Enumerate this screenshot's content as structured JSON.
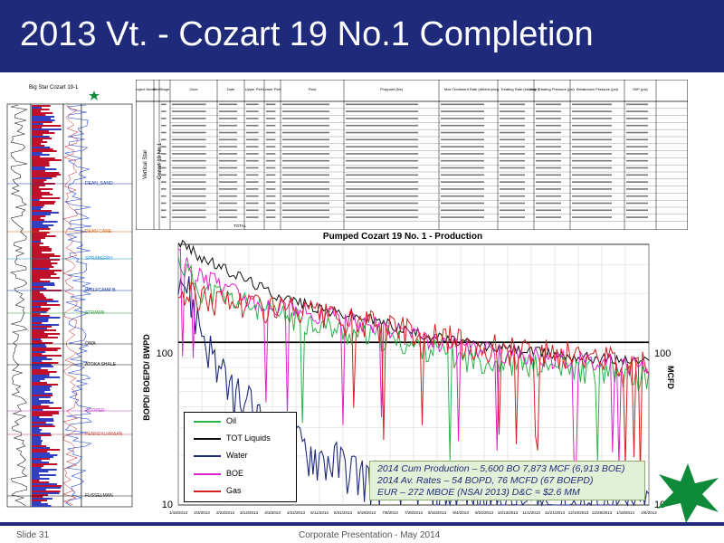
{
  "slide": {
    "title": "2013 Vt. - Cozart 19 No.1 Completion",
    "footer_left": "Slide 31",
    "footer_center": "Corporate Presentation - May 2014"
  },
  "colors": {
    "title_bar": "#1f2b7a",
    "oil": "#2ab34a",
    "tot_liquids": "#111111",
    "water": "#1f2b7a",
    "boe": "#e020c8",
    "gas": "#d42020",
    "star": "#0f8a3a"
  },
  "well_log": {
    "title": "Big Star Cozart 19-1",
    "labels": [
      {
        "text": "DEAN_SAND"
      },
      {
        "text": "DEAN CARE"
      },
      {
        "text": "SPRABERRY"
      },
      {
        "text": "WOLFCAMP B"
      },
      {
        "text": "STRAWN"
      },
      {
        "text": "OWA"
      },
      {
        "text": "ATOKA SHALE"
      },
      {
        "text": "COOPER"
      },
      {
        "text": "PENNSYLVANIAN"
      },
      {
        "text": "FUSSELMAN"
      }
    ]
  },
  "completion_table": {
    "headers": [
      "Project Name",
      "Well",
      "Stage",
      "Zone",
      "Date",
      "Upper Perf.",
      "Lower Perf.",
      "Fluid",
      "Proppant (lbs)",
      "Max Treatment Rate (bbl/min)",
      "Avg. Treating Rate (bbls/min)",
      "Avg. Treating Pressure (psi)",
      "Breakdown Pressure (psi)",
      "ISIP (psi)"
    ],
    "side_labels": [
      "Vertical Star",
      "Cozart 19 No.1"
    ],
    "total_label": "TOTAL"
  },
  "chart_data": {
    "type": "line",
    "title": "Pumped Cozart 19 No. 1 - Production",
    "ylabel": "BOPD/ BOEPD/ BWPD",
    "y2label": "MCFD",
    "yscale": "log",
    "ylim": [
      10,
      400
    ],
    "y_ticks": [
      "100",
      "10"
    ],
    "y2_ticks": [
      "100",
      "10"
    ],
    "x_ticks": [
      "1/16/2013",
      "2/3/2013",
      "2/23/2013",
      "3/14/2013",
      "4/3/2013",
      "4/22/2013",
      "5/11/2013",
      "5/31/2013",
      "6/19/2013",
      "7/8/2013",
      "7/28/2013",
      "8/16/2013",
      "9/4/2013",
      "9/24/2013",
      "10/13/2013",
      "11/1/2013",
      "11/21/2013",
      "12/10/2013",
      "12/29/2013",
      "1/18/2014",
      "2/6/2014"
    ],
    "legend_position": "bottom-left",
    "series": [
      {
        "name": "Oil",
        "values": [
          320,
          210,
          190,
          170,
          150,
          140,
          130,
          115,
          110,
          105,
          95,
          90,
          80,
          78,
          75,
          72,
          70,
          68,
          66,
          62,
          60
        ]
      },
      {
        "name": "TOT Liquids",
        "values": [
          420,
          330,
          280,
          240,
          200,
          180,
          160,
          150,
          140,
          130,
          115,
          108,
          100,
          95,
          92,
          88,
          85,
          82,
          80,
          78,
          76
        ]
      },
      {
        "name": "Water",
        "values": [
          300,
          120,
          55,
          40,
          28,
          24,
          20,
          18,
          15,
          14,
          13,
          12,
          11,
          11,
          10,
          10,
          10,
          10,
          10,
          10,
          10
        ]
      },
      {
        "name": "BOE",
        "values": [
          350,
          250,
          220,
          190,
          170,
          160,
          150,
          140,
          130,
          120,
          110,
          100,
          95,
          90,
          85,
          82,
          80,
          78,
          76,
          72,
          70
        ]
      },
      {
        "name": "Gas",
        "values": [
          200,
          190,
          180,
          175,
          165,
          155,
          145,
          135,
          130,
          125,
          120,
          110,
          100,
          95,
          92,
          88,
          85,
          82,
          80,
          78,
          75
        ]
      }
    ],
    "annotations": [
      "2014 Cum Production – 5,600 BO 7,873 MCF (6,913  BOE)",
      "2014 Av. Rates – 54 BOPD, 76 MCFD (67 BOEPD)",
      "EUR – 272 MBOE  (NSAI 2013) D&C = $2.6 MM"
    ]
  }
}
